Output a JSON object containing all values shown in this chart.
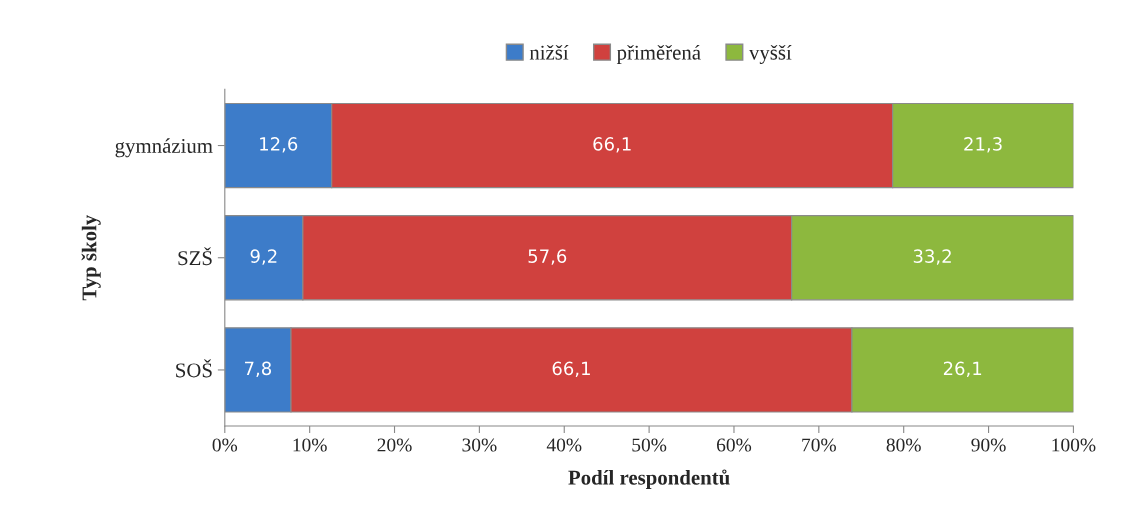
{
  "chart_data": {
    "type": "bar",
    "orientation": "horizontal",
    "stacked": true,
    "categories": [
      "gymnázium",
      "SZŠ",
      "SOŠ"
    ],
    "xlabel": "Podíl respondentů",
    "ylabel": "Typ školy",
    "xlim": [
      0,
      100
    ],
    "xticks": [
      {
        "value": 0,
        "label": "0%"
      },
      {
        "value": 10,
        "label": "10%"
      },
      {
        "value": 20,
        "label": "20%"
      },
      {
        "value": 30,
        "label": "30%"
      },
      {
        "value": 40,
        "label": "40%"
      },
      {
        "value": 50,
        "label": "50%"
      },
      {
        "value": 60,
        "label": "60%"
      },
      {
        "value": 70,
        "label": "70%"
      },
      {
        "value": 80,
        "label": "80%"
      },
      {
        "value": 90,
        "label": "90%"
      },
      {
        "value": 100,
        "label": "100%"
      }
    ],
    "legend": "top",
    "grid": false,
    "series": [
      {
        "name": "nižší",
        "color": "#3d7cc9",
        "values": [
          12.6,
          9.2,
          7.8
        ],
        "value_labels": [
          "12,6",
          "9,2",
          "7,8"
        ]
      },
      {
        "name": "přiměřená",
        "color": "#d0413e",
        "values": [
          66.1,
          57.6,
          66.1
        ],
        "value_labels": [
          "66,1",
          "57,6",
          "66,1"
        ]
      },
      {
        "name": "vyšší",
        "color": "#8db83e",
        "values": [
          21.3,
          33.2,
          26.1
        ],
        "value_labels": [
          "21,3",
          "33,2",
          "26,1"
        ]
      }
    ]
  }
}
